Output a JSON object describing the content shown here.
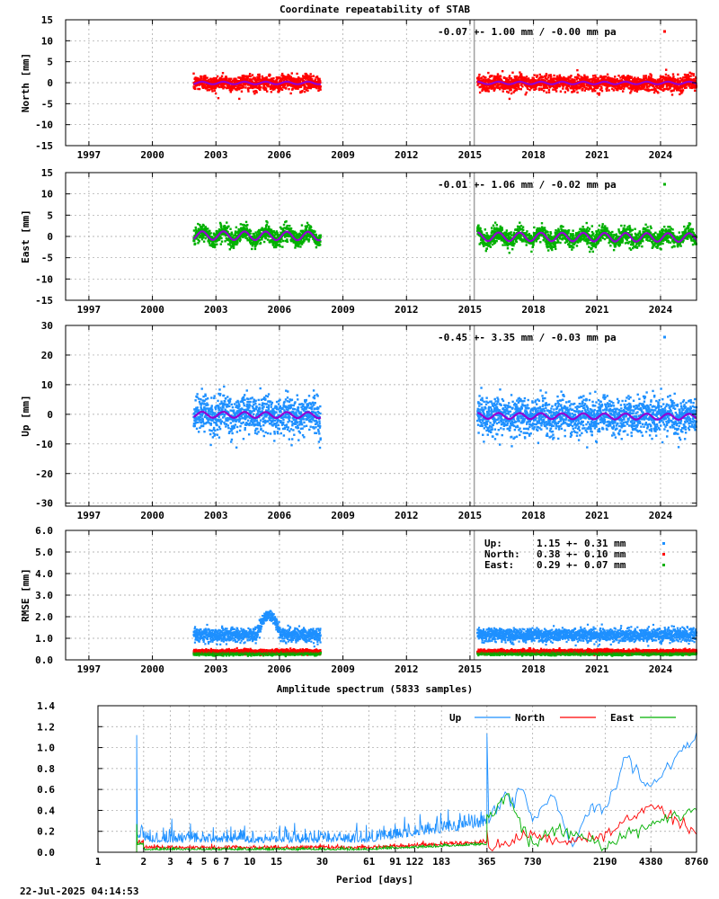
{
  "title": "Coordinate repeatability of STAB",
  "footer_timestamp": "22-Jul-2025 04:14:53",
  "colors": {
    "north": "#ff0000",
    "east": "#00b000",
    "up": "#1e90ff",
    "model": "#9400d3",
    "gap_marker": "#a0a0a0"
  },
  "chart_data": [
    {
      "id": "north",
      "type": "scatter",
      "ylabel": "North [mm]",
      "ylim": [
        -15,
        15
      ],
      "yticks": [
        -15,
        -10,
        -5,
        0,
        5,
        10,
        15
      ],
      "xlim": [
        1995.9,
        2025.7
      ],
      "xticks": [
        1997,
        2000,
        2003,
        2006,
        2009,
        2012,
        2015,
        2018,
        2021,
        2024
      ],
      "stat_text": "-0.07 +- 1.00 mm / -0.00 mm pa",
      "segments": [
        [
          2001.95,
          2007.95
        ],
        [
          2015.35,
          2025.7
        ]
      ],
      "noise_sd": 1.0,
      "seasonal_amp": 0.3,
      "trend_mm_pa": -0.0,
      "offset": -0.07,
      "gap_marker_year": 2015.2,
      "grid": true
    },
    {
      "id": "east",
      "type": "scatter",
      "ylabel": "East [mm]",
      "ylim": [
        -15,
        15
      ],
      "yticks": [
        -15,
        -10,
        -5,
        0,
        5,
        10,
        15
      ],
      "xlim": [
        1995.9,
        2025.7
      ],
      "xticks": [
        1997,
        2000,
        2003,
        2006,
        2009,
        2012,
        2015,
        2018,
        2021,
        2024
      ],
      "stat_text": "-0.01 +- 1.06 mm / -0.02 mm pa",
      "segments": [
        [
          2001.95,
          2007.95
        ],
        [
          2015.35,
          2025.7
        ]
      ],
      "noise_sd": 1.06,
      "seasonal_amp": 1.0,
      "trend_mm_pa": -0.02,
      "offset": -0.01,
      "gap_marker_year": 2015.2,
      "grid": true
    },
    {
      "id": "up",
      "type": "scatter",
      "ylabel": "Up [mm]",
      "ylim": [
        -31,
        30
      ],
      "yticks": [
        -30,
        -20,
        -10,
        0,
        10,
        20,
        30
      ],
      "xlim": [
        1995.9,
        2025.7
      ],
      "xticks": [
        1997,
        2000,
        2003,
        2006,
        2009,
        2012,
        2015,
        2018,
        2021,
        2024
      ],
      "stat_text": "-0.45 +- 3.35 mm / -0.03 mm pa",
      "segments": [
        [
          2001.95,
          2007.95
        ],
        [
          2015.35,
          2025.7
        ]
      ],
      "noise_sd": 3.35,
      "seasonal_amp": 1.0,
      "trend_mm_pa": -0.03,
      "offset": -0.45,
      "gap_marker_year": 2015.2,
      "grid": true
    },
    {
      "id": "rmse",
      "type": "scatter",
      "ylabel": "RMSE [mm]",
      "ylim": [
        0,
        6
      ],
      "yticks": [
        "0.0",
        "1.0",
        "2.0",
        "3.0",
        "4.0",
        "5.0",
        "6.0"
      ],
      "xlim": [
        1995.9,
        2025.7
      ],
      "xticks": [
        1997,
        2000,
        2003,
        2006,
        2009,
        2012,
        2015,
        2018,
        2021,
        2024
      ],
      "segments": [
        [
          2001.95,
          2007.95
        ],
        [
          2015.35,
          2025.7
        ]
      ],
      "gap_marker_year": 2015.2,
      "legend": [
        {
          "label": "Up:",
          "value": "1.15 +- 0.31 mm",
          "mean": 1.15,
          "sd": 0.31
        },
        {
          "label": "North:",
          "value": "0.38 +- 0.10 mm",
          "mean": 0.38,
          "sd": 0.1
        },
        {
          "label": "East:",
          "value": "0.29 +- 0.07 mm",
          "mean": 0.29,
          "sd": 0.07
        }
      ],
      "grid": true
    },
    {
      "id": "spectrum",
      "type": "line",
      "title": "Amplitude spectrum (5833 samples)",
      "xlabel": "Period [days]",
      "xscale": "log",
      "xlim": [
        1,
        8760
      ],
      "ylim": [
        0,
        1.4
      ],
      "yticks": [
        "0.0",
        "0.2",
        "0.4",
        "0.6",
        "0.8",
        "1.0",
        "1.2",
        "1.4"
      ],
      "xticks": [
        1,
        2,
        3,
        4,
        5,
        6,
        7,
        10,
        15,
        30,
        61,
        91,
        122,
        183,
        365,
        730,
        2190,
        4380,
        8760
      ],
      "legend_position": "top-right",
      "series": [
        {
          "name": "Up",
          "key": "up",
          "long_period": [
            [
              365,
              0.3
            ],
            [
              500,
              0.55
            ],
            [
              550,
              0.45
            ],
            [
              600,
              0.65
            ],
            [
              730,
              0.28
            ],
            [
              1000,
              0.55
            ],
            [
              1300,
              0.05
            ],
            [
              1800,
              0.45
            ],
            [
              2190,
              0.38
            ],
            [
              3000,
              0.9
            ],
            [
              4380,
              0.63
            ],
            [
              8760,
              1.13
            ]
          ]
        },
        {
          "name": "North",
          "key": "north",
          "long_period": [
            [
              365,
              0.03
            ],
            [
              730,
              0.18
            ],
            [
              900,
              0.12
            ],
            [
              1300,
              0.12
            ],
            [
              2190,
              0.15
            ],
            [
              4380,
              0.45
            ],
            [
              8760,
              0.2
            ]
          ]
        },
        {
          "name": "East",
          "key": "east",
          "long_period": [
            [
              365,
              0.3
            ],
            [
              500,
              0.55
            ],
            [
              600,
              0.3
            ],
            [
              730,
              0.05
            ],
            [
              1000,
              0.22
            ],
            [
              1300,
              0.22
            ],
            [
              2190,
              0.05
            ],
            [
              4380,
              0.27
            ],
            [
              8760,
              0.4
            ]
          ]
        }
      ],
      "short_period_peak": {
        "period": 1.8,
        "up": 1.12,
        "east": 0.27,
        "north": 0.08
      },
      "grid": true
    }
  ]
}
